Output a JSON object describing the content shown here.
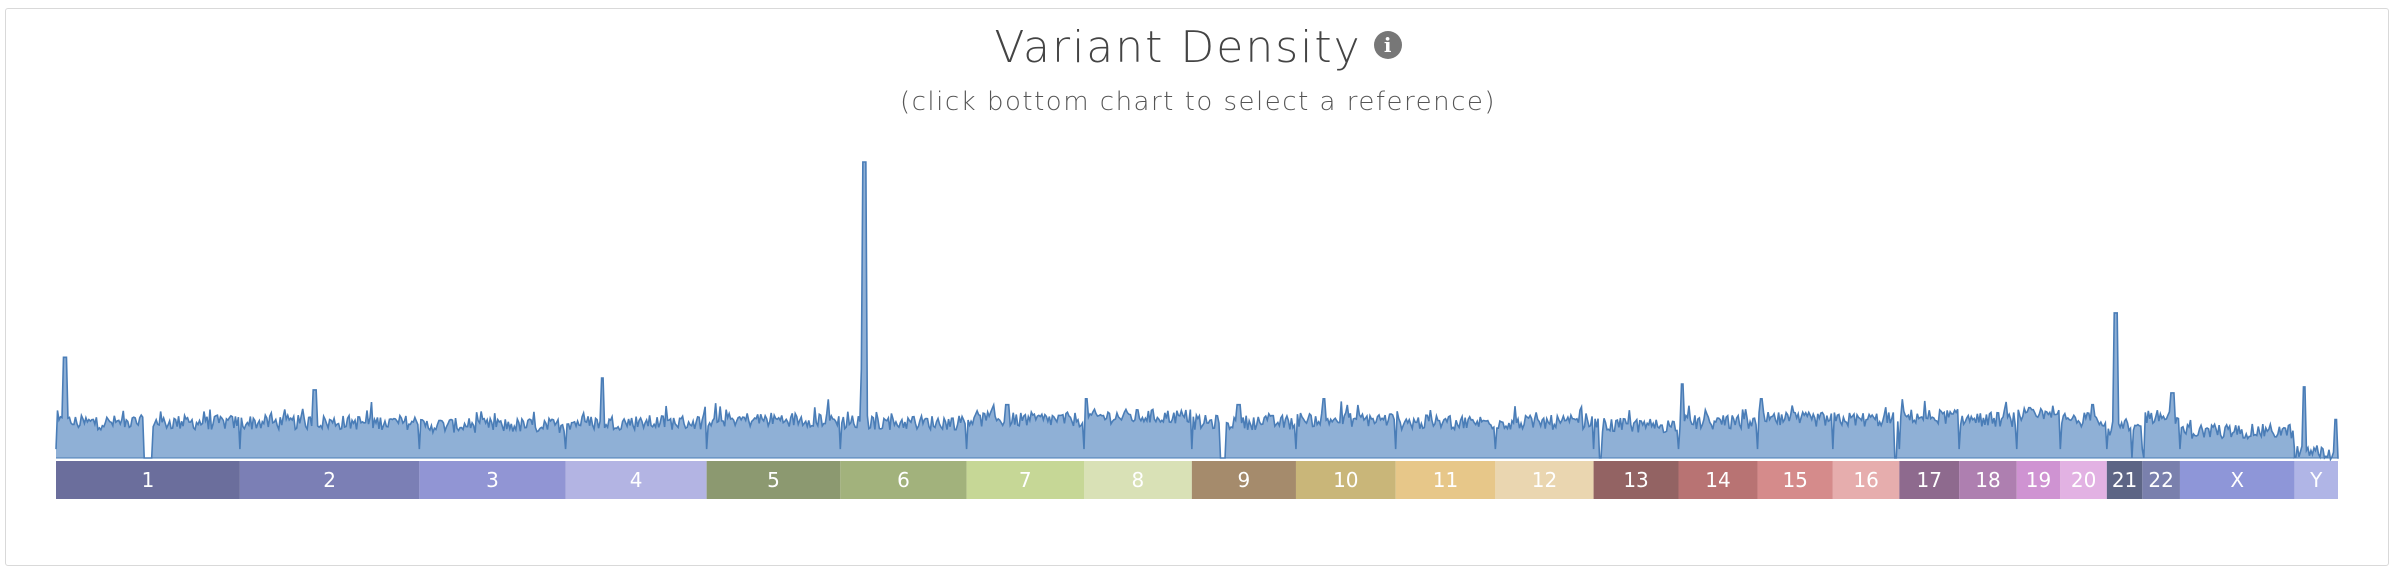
{
  "header": {
    "title": "Variant Density",
    "info_icon": "info-icon",
    "subtitle": "(click bottom chart to select a reference)"
  },
  "colors": {
    "area_fill": "#8fb0d6",
    "area_stroke": "#4a7db7",
    "panel_border": "#d9d9d9"
  },
  "chart_data": {
    "type": "area",
    "title": "Variant Density",
    "subtitle": "(click bottom chart to select a reference)",
    "xlabel": "",
    "ylabel": "",
    "grid": false,
    "references": [
      {
        "name": "1",
        "length": 249,
        "color": "#6b6e9c"
      },
      {
        "name": "2",
        "length": 243,
        "color": "#7b7fb5"
      },
      {
        "name": "3",
        "length": 198,
        "color": "#9195d4"
      },
      {
        "name": "4",
        "length": 191,
        "color": "#b3b4e3"
      },
      {
        "name": "5",
        "length": 181,
        "color": "#8c9970"
      },
      {
        "name": "6",
        "length": 171,
        "color": "#a2b27c"
      },
      {
        "name": "7",
        "length": 159,
        "color": "#c6d796"
      },
      {
        "name": "8",
        "length": 146,
        "color": "#d9e1b6"
      },
      {
        "name": "9",
        "length": 141,
        "color": "#a58b6c"
      },
      {
        "name": "10",
        "length": 135,
        "color": "#c9b679"
      },
      {
        "name": "11",
        "length": 135,
        "color": "#e7c789"
      },
      {
        "name": "12",
        "length": 133,
        "color": "#ead6b0"
      },
      {
        "name": "13",
        "length": 115,
        "color": "#936363"
      },
      {
        "name": "14",
        "length": 107,
        "color": "#b87373"
      },
      {
        "name": "15",
        "length": 102,
        "color": "#d58b8b"
      },
      {
        "name": "16",
        "length": 90,
        "color": "#e6adad"
      },
      {
        "name": "17",
        "length": 81,
        "color": "#8e6a8e"
      },
      {
        "name": "18",
        "length": 78,
        "color": "#ae7fb0"
      },
      {
        "name": "19",
        "length": 59,
        "color": "#cf93d2"
      },
      {
        "name": "20",
        "length": 63,
        "color": "#e2b2e3"
      },
      {
        "name": "21",
        "length": 48,
        "color": "#5d6585"
      },
      {
        "name": "22",
        "length": 51,
        "color": "#7a80ad"
      },
      {
        "name": "X",
        "length": 155,
        "color": "#8e96d8"
      },
      {
        "name": "Y",
        "length": 59,
        "color": "#b0b5e6"
      }
    ],
    "density_profile": [
      {
        "reference": "1",
        "baseline": 0.12,
        "peaks": [
          {
            "at": 0.05,
            "value": 0.34
          }
        ],
        "gap": 0.5
      },
      {
        "reference": "2",
        "baseline": 0.12,
        "peaks": [
          {
            "at": 0.42,
            "value": 0.23
          }
        ]
      },
      {
        "reference": "3",
        "baseline": 0.11,
        "peaks": []
      },
      {
        "reference": "4",
        "baseline": 0.12,
        "peaks": [
          {
            "at": 0.26,
            "value": 0.27
          }
        ]
      },
      {
        "reference": "5",
        "baseline": 0.13,
        "peaks": []
      },
      {
        "reference": "6",
        "baseline": 0.12,
        "peaks": [
          {
            "at": 0.19,
            "value": 1.0
          },
          {
            "at": 0.18,
            "value": 0.3
          }
        ]
      },
      {
        "reference": "7",
        "baseline": 0.13,
        "peaks": [
          {
            "at": 0.35,
            "value": 0.18
          }
        ]
      },
      {
        "reference": "8",
        "baseline": 0.14,
        "peaks": [
          {
            "at": 0.02,
            "value": 0.2
          }
        ]
      },
      {
        "reference": "9",
        "baseline": 0.12,
        "peaks": [
          {
            "at": 0.45,
            "value": 0.18
          }
        ],
        "gap": 0.3
      },
      {
        "reference": "10",
        "baseline": 0.13,
        "peaks": [
          {
            "at": 0.28,
            "value": 0.2
          }
        ]
      },
      {
        "reference": "11",
        "baseline": 0.12,
        "peaks": []
      },
      {
        "reference": "12",
        "baseline": 0.12,
        "peaks": []
      },
      {
        "reference": "13",
        "baseline": 0.11,
        "peaks": [],
        "gap": 0.08
      },
      {
        "reference": "14",
        "baseline": 0.12,
        "peaks": [
          {
            "at": 0.05,
            "value": 0.25
          }
        ],
        "gap": 0.05
      },
      {
        "reference": "15",
        "baseline": 0.13,
        "peaks": [
          {
            "at": 0.05,
            "value": 0.2
          }
        ],
        "gap": 0.05
      },
      {
        "reference": "16",
        "baseline": 0.13,
        "peaks": [],
        "gap": 0.95
      },
      {
        "reference": "17",
        "baseline": 0.14,
        "peaks": []
      },
      {
        "reference": "18",
        "baseline": 0.13,
        "peaks": []
      },
      {
        "reference": "19",
        "baseline": 0.14,
        "peaks": [
          {
            "at": 0.3,
            "value": 0.17
          }
        ]
      },
      {
        "reference": "20",
        "baseline": 0.13,
        "peaks": [
          {
            "at": 0.7,
            "value": 0.18
          }
        ]
      },
      {
        "reference": "21",
        "baseline": 0.1,
        "peaks": [
          {
            "at": 0.25,
            "value": 0.49
          }
        ],
        "gap": 0.7
      },
      {
        "reference": "22",
        "baseline": 0.14,
        "peaks": [
          {
            "at": 0.8,
            "value": 0.22
          }
        ],
        "gap": 0.05
      },
      {
        "reference": "X",
        "baseline": 0.09,
        "peaks": []
      },
      {
        "reference": "Y",
        "baseline": 0.02,
        "peaks": [
          {
            "at": 0.22,
            "value": 0.24
          },
          {
            "at": 0.95,
            "value": 0.13
          }
        ]
      }
    ]
  }
}
